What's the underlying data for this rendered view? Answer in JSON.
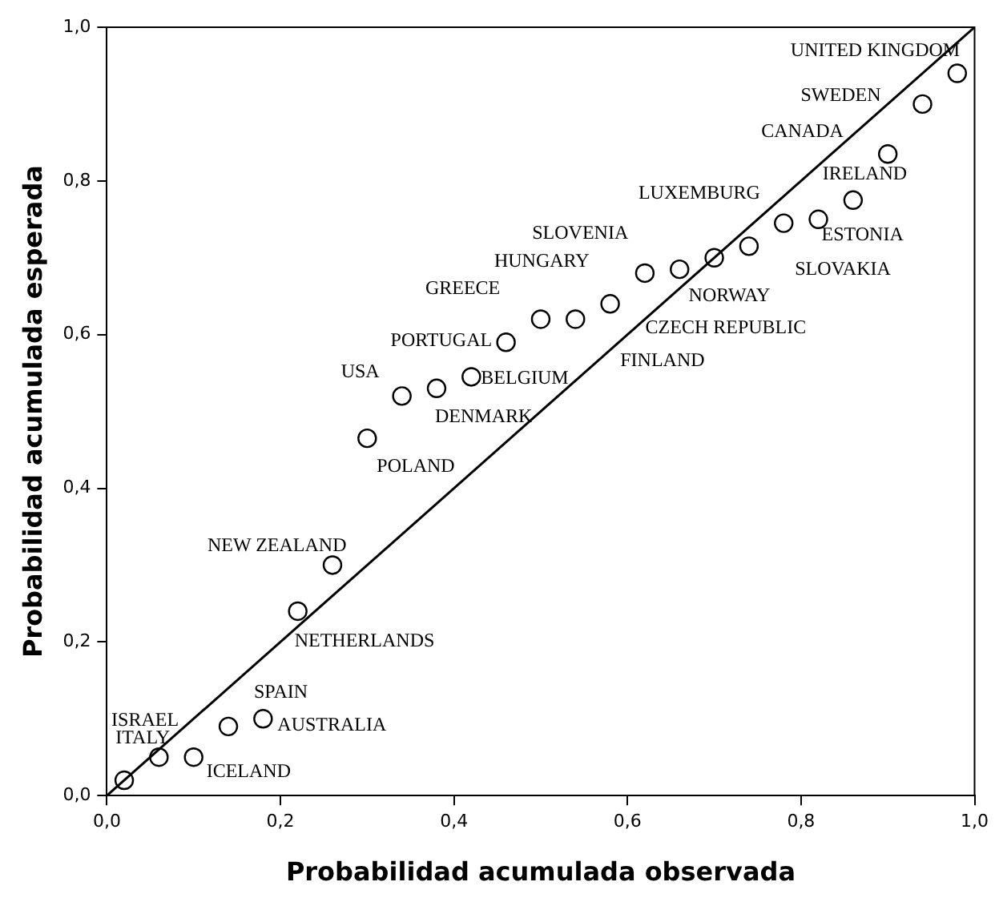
{
  "chart_data": {
    "type": "scatter",
    "xlabel": "Probabilidad acumulada observada",
    "ylabel": "Probabilidad acumulada esperada",
    "xlim": [
      0,
      1
    ],
    "ylim": [
      0,
      1
    ],
    "xticks": [
      {
        "value": 0,
        "label": "0,0"
      },
      {
        "value": 0.2,
        "label": "0,2"
      },
      {
        "value": 0.4,
        "label": "0,4"
      },
      {
        "value": 0.6,
        "label": "0,6"
      },
      {
        "value": 0.8,
        "label": "0,8"
      },
      {
        "value": 1,
        "label": "1,0"
      }
    ],
    "yticks": [
      {
        "value": 0,
        "label": "0,0"
      },
      {
        "value": 0.2,
        "label": "0,2"
      },
      {
        "value": 0.4,
        "label": "0,4"
      },
      {
        "value": 0.6,
        "label": "0,6"
      },
      {
        "value": 0.8,
        "label": "0,8"
      },
      {
        "value": 1,
        "label": "1,0"
      }
    ],
    "grid": false,
    "legend": false,
    "marker": "circle",
    "series": [
      {
        "color": "#000000",
        "x": [
          0.02,
          0.06,
          0.1,
          0.14,
          0.18,
          0.22,
          0.26,
          0.3,
          0.34,
          0.38,
          0.42,
          0.46,
          0.5,
          0.54,
          0.58,
          0.62,
          0.66,
          0.7,
          0.74,
          0.78,
          0.82,
          0.86,
          0.9,
          0.94,
          0.98
        ],
        "values": [
          0.02,
          0.05,
          0.05,
          0.09,
          0.1,
          0.24,
          0.3,
          0.465,
          0.52,
          0.53,
          0.545,
          0.59,
          0.62,
          0.62,
          0.64,
          0.68,
          0.685,
          0.7,
          0.715,
          0.745,
          0.75,
          0.775,
          0.835,
          0.9,
          0.94
        ]
      },
      {
        "type": "line",
        "color": "#000000",
        "x": [
          0,
          1
        ],
        "values": [
          0,
          1
        ],
        "marker": "none"
      }
    ],
    "annotations": [
      {
        "text": "ISRAEL",
        "x": 0.02,
        "y": 0.02
      },
      {
        "text": "ITALY",
        "x": 0.06,
        "y": 0.05
      },
      {
        "text": "ICELAND",
        "x": 0.1,
        "y": 0.05
      },
      {
        "text": "SPAIN",
        "x": 0.14,
        "y": 0.09
      },
      {
        "text": "AUSTRALIA",
        "x": 0.18,
        "y": 0.1
      },
      {
        "text": "NETHERLANDS",
        "x": 0.22,
        "y": 0.24
      },
      {
        "text": "NEW ZEALAND",
        "x": 0.26,
        "y": 0.3
      },
      {
        "text": "POLAND",
        "x": 0.3,
        "y": 0.465
      },
      {
        "text": "USA",
        "x": 0.34,
        "y": 0.52
      },
      {
        "text": "DENMARK",
        "x": 0.38,
        "y": 0.53
      },
      {
        "text": "BELGIUM",
        "x": 0.42,
        "y": 0.545
      },
      {
        "text": "PORTUGAL",
        "x": 0.46,
        "y": 0.59
      },
      {
        "text": "GREECE",
        "x": 0.5,
        "y": 0.62
      },
      {
        "text": "FINLAND",
        "x": 0.54,
        "y": 0.62
      },
      {
        "text": "CZECH REPUBLIC",
        "x": 0.58,
        "y": 0.64
      },
      {
        "text": "HUNGARY",
        "x": 0.62,
        "y": 0.68
      },
      {
        "text": "SLOVENIA",
        "x": 0.66,
        "y": 0.685
      },
      {
        "text": "NORWAY",
        "x": 0.7,
        "y": 0.7
      },
      {
        "text": "LUXEMBURG",
        "x": 0.74,
        "y": 0.715
      },
      {
        "text": "SLOVAKIA",
        "x": 0.78,
        "y": 0.745
      },
      {
        "text": "ESTONIA",
        "x": 0.82,
        "y": 0.75
      },
      {
        "text": "IRELAND",
        "x": 0.86,
        "y": 0.775
      },
      {
        "text": "CANADA",
        "x": 0.9,
        "y": 0.835
      },
      {
        "text": "SWEDEN",
        "x": 0.94,
        "y": 0.9
      },
      {
        "text": "UNITED KINGDOM",
        "x": 0.98,
        "y": 0.94
      }
    ]
  }
}
